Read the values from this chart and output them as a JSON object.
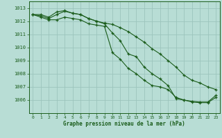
{
  "x": [
    0,
    1,
    2,
    3,
    4,
    5,
    6,
    7,
    8,
    9,
    10,
    11,
    12,
    13,
    14,
    15,
    16,
    17,
    18,
    19,
    20,
    21,
    22,
    23
  ],
  "line1": [
    1012.5,
    1012.5,
    1012.3,
    1012.7,
    1012.8,
    1012.6,
    1012.5,
    1012.2,
    1012.0,
    1011.8,
    1011.1,
    1010.5,
    1009.5,
    1009.3,
    1008.5,
    1008.0,
    1007.6,
    1007.1,
    1006.1,
    1006.0,
    1005.9,
    1005.85,
    1005.85,
    1006.35
  ],
  "line2": [
    1012.5,
    1012.4,
    1012.2,
    1012.5,
    1012.75,
    1012.6,
    1012.5,
    1012.2,
    1012.0,
    1011.85,
    1011.75,
    1011.5,
    1011.2,
    1010.8,
    1010.4,
    1009.9,
    1009.5,
    1009.0,
    1008.5,
    1007.9,
    1007.5,
    1007.3,
    1007.0,
    1006.8
  ],
  "line3": [
    1012.5,
    1012.3,
    1012.1,
    1012.1,
    1012.3,
    1012.2,
    1012.1,
    1011.8,
    1011.7,
    1011.6,
    1009.6,
    1009.1,
    1008.4,
    1008.0,
    1007.5,
    1007.1,
    1007.0,
    1006.8,
    1006.2,
    1006.0,
    1005.85,
    1005.8,
    1005.8,
    1006.2
  ],
  "line_color": "#1a5c1a",
  "bg_color": "#b8ddd5",
  "grid_color": "#9cc4bc",
  "xlabel": "Graphe pression niveau de la mer (hPa)",
  "xlim": [
    -0.5,
    23.5
  ],
  "ylim": [
    1005.0,
    1013.5
  ],
  "yticks": [
    1006,
    1007,
    1008,
    1009,
    1010,
    1011,
    1012,
    1013
  ],
  "xticks": [
    0,
    1,
    2,
    3,
    4,
    5,
    6,
    7,
    8,
    9,
    10,
    11,
    12,
    13,
    14,
    15,
    16,
    17,
    18,
    19,
    20,
    21,
    22,
    23
  ]
}
